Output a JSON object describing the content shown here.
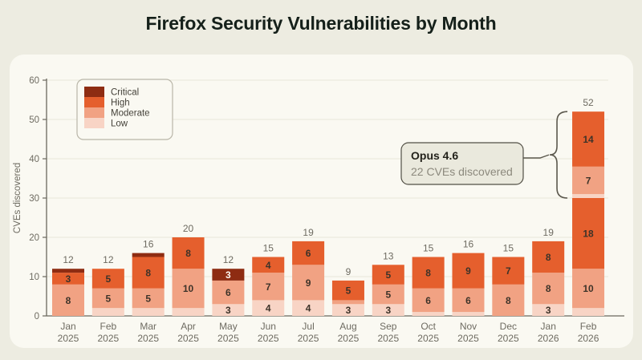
{
  "title": "Firefox Security Vulnerabilities by Month",
  "colors": {
    "page_bg": "#EDECE1",
    "panel_bg": "#FAF9F2",
    "title_text": "#15201A",
    "muted_text": "#6E6B61",
    "axis": "#6B685E",
    "gridline": "#E8E6DB",
    "segment_label": "#3D3329",
    "segment_label_on_dark": "#FDF8F2",
    "legend_border": "#B9B6A8",
    "legend_text": "#45423A",
    "callout_bg": "#EAE9DD",
    "callout_border": "#525046",
    "callout_title": "#23221B",
    "callout_subtitle": "#8C897D",
    "brace": "#5B584D"
  },
  "chart_data": {
    "type": "bar",
    "subtype": "stacked",
    "title": "Firefox Security Vulnerabilities by Month",
    "xlabel": "",
    "ylabel": "CVEs discovered",
    "ylim": [
      0,
      60
    ],
    "yticks": [
      0,
      10,
      20,
      30,
      40,
      50,
      60
    ],
    "grid": true,
    "legend_position": "top-left",
    "label_min_value": 3,
    "severities": [
      {
        "key": "critical",
        "label": "Critical",
        "color": "#8E2C12"
      },
      {
        "key": "high",
        "label": "High",
        "color": "#E55F2D"
      },
      {
        "key": "moderate",
        "label": "Moderate",
        "color": "#F1A283"
      },
      {
        "key": "low",
        "label": "Low",
        "color": "#F8D4C5"
      }
    ],
    "months": [
      {
        "month": "Jan",
        "year": "2025",
        "total": 12,
        "segments": [
          {
            "severity": "moderate",
            "value": 8
          },
          {
            "severity": "high",
            "value": 3
          },
          {
            "severity": "critical",
            "value": 1
          }
        ]
      },
      {
        "month": "Feb",
        "year": "2025",
        "total": 12,
        "segments": [
          {
            "severity": "low",
            "value": 2
          },
          {
            "severity": "moderate",
            "value": 5
          },
          {
            "severity": "high",
            "value": 5
          }
        ]
      },
      {
        "month": "Mar",
        "year": "2025",
        "total": 16,
        "segments": [
          {
            "severity": "low",
            "value": 2
          },
          {
            "severity": "moderate",
            "value": 5
          },
          {
            "severity": "high",
            "value": 8
          },
          {
            "severity": "critical",
            "value": 1
          }
        ]
      },
      {
        "month": "Apr",
        "year": "2025",
        "total": 20,
        "segments": [
          {
            "severity": "low",
            "value": 2
          },
          {
            "severity": "moderate",
            "value": 10
          },
          {
            "severity": "high",
            "value": 8
          }
        ]
      },
      {
        "month": "May",
        "year": "2025",
        "total": 12,
        "segments": [
          {
            "severity": "low",
            "value": 3
          },
          {
            "severity": "moderate",
            "value": 6
          },
          {
            "severity": "critical",
            "value": 3
          }
        ]
      },
      {
        "month": "Jun",
        "year": "2025",
        "total": 15,
        "segments": [
          {
            "severity": "low",
            "value": 4
          },
          {
            "severity": "moderate",
            "value": 7
          },
          {
            "severity": "high",
            "value": 4
          }
        ]
      },
      {
        "month": "Jul",
        "year": "2025",
        "total": 19,
        "segments": [
          {
            "severity": "low",
            "value": 4
          },
          {
            "severity": "moderate",
            "value": 9
          },
          {
            "severity": "high",
            "value": 6
          }
        ]
      },
      {
        "month": "Aug",
        "year": "2025",
        "total": 9,
        "segments": [
          {
            "severity": "low",
            "value": 3
          },
          {
            "severity": "moderate",
            "value": 1
          },
          {
            "severity": "high",
            "value": 5
          }
        ]
      },
      {
        "month": "Sep",
        "year": "2025",
        "total": 13,
        "segments": [
          {
            "severity": "low",
            "value": 3
          },
          {
            "severity": "moderate",
            "value": 5
          },
          {
            "severity": "high",
            "value": 5
          }
        ]
      },
      {
        "month": "Oct",
        "year": "2025",
        "total": 15,
        "segments": [
          {
            "severity": "low",
            "value": 1
          },
          {
            "severity": "moderate",
            "value": 6
          },
          {
            "severity": "high",
            "value": 8
          }
        ]
      },
      {
        "month": "Nov",
        "year": "2025",
        "total": 16,
        "segments": [
          {
            "severity": "low",
            "value": 1
          },
          {
            "severity": "moderate",
            "value": 6
          },
          {
            "severity": "high",
            "value": 9
          }
        ]
      },
      {
        "month": "Dec",
        "year": "2025",
        "total": 15,
        "segments": [
          {
            "severity": "moderate",
            "value": 8
          },
          {
            "severity": "high",
            "value": 7
          }
        ]
      },
      {
        "month": "Jan",
        "year": "2026",
        "total": 19,
        "segments": [
          {
            "severity": "low",
            "value": 3
          },
          {
            "severity": "moderate",
            "value": 8
          },
          {
            "severity": "high",
            "value": 8
          }
        ]
      },
      {
        "month": "Feb",
        "year": "2026",
        "total": 52,
        "segments": [
          {
            "severity": "low",
            "value": 2
          },
          {
            "severity": "moderate",
            "value": 10
          },
          {
            "severity": "high",
            "value": 18
          },
          {
            "severity": "low",
            "value": 1
          },
          {
            "severity": "moderate",
            "value": 7
          },
          {
            "severity": "high",
            "value": 14
          }
        ]
      }
    ],
    "annotation": {
      "title": "Opus 4.6",
      "subtitle": "22 CVEs discovered",
      "target_month": "Feb 2026",
      "bracket_segments_from_top": 3,
      "bracket_total": 22
    }
  }
}
